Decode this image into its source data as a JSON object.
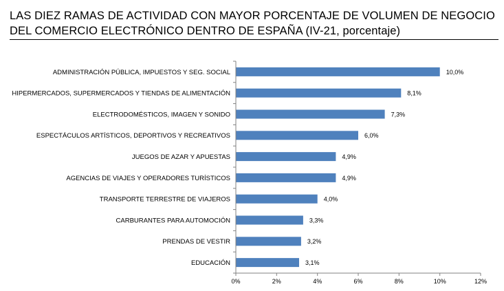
{
  "chart_data": {
    "type": "bar",
    "orientation": "horizontal",
    "title": [
      "LAS DIEZ RAMAS DE ACTIVIDAD CON MAYOR PORCENTAJE DE VOLUMEN DE NEGOCIO",
      "DEL COMERCIO ELECTRÓNICO DENTRO DE ESPAÑA (IV-21, porcentaje)"
    ],
    "categories": [
      "ADMINISTRACIÓN PÚBLICA, IMPUESTOS Y SEG. SOCIAL",
      "HIPERMERCADOS, SUPERMERCADOS Y TIENDAS DE ALIMENTACIÓN",
      "ELECTRODOMÉSTICOS,  IMAGEN Y SONIDO",
      "ESPECTÁCULOS ARTÍSTICOS, DEPORTIVOS Y RECREATIVOS",
      "JUEGOS DE AZAR Y APUESTAS",
      "AGENCIAS DE VIAJES Y OPERADORES TURÍSTICOS",
      "TRANSPORTE TERRESTRE DE VIAJEROS",
      "CARBURANTES PARA AUTOMOCIÓN",
      "PRENDAS DE VESTIR",
      "EDUCACIÓN"
    ],
    "values": [
      10.0,
      8.1,
      7.3,
      6.0,
      4.9,
      4.9,
      4.0,
      3.3,
      3.2,
      3.1
    ],
    "value_labels": [
      "10,0%",
      "8,1%",
      "7,3%",
      "6,0%",
      "4,9%",
      "4,9%",
      "4,0%",
      "3,3%",
      "3,2%",
      "3,1%"
    ],
    "xlim": [
      0,
      12
    ],
    "xticks": [
      0,
      2,
      4,
      6,
      8,
      10,
      12
    ],
    "xtick_labels": [
      "0%",
      "2%",
      "4%",
      "6%",
      "8%",
      "10%",
      "12%"
    ],
    "grid": false,
    "legend": "none",
    "bar_color": "#4F81BD"
  }
}
